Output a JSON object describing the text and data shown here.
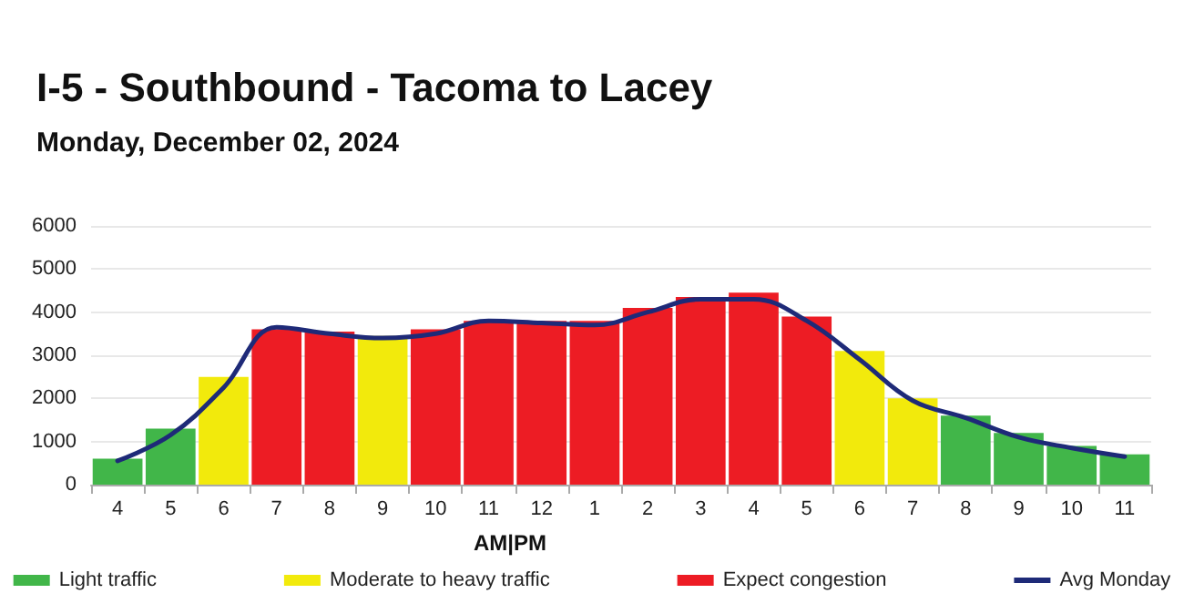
{
  "chart_data": {
    "type": "bar",
    "title": "I-5 - Southbound - Tacoma to Lacey",
    "subtitle": "Monday, December 02, 2024",
    "categories": [
      "4",
      "5",
      "6",
      "7",
      "8",
      "9",
      "10",
      "11",
      "12",
      "1",
      "2",
      "3",
      "4",
      "5",
      "6",
      "7",
      "8",
      "9",
      "10",
      "11"
    ],
    "series": [
      {
        "name": "Light traffic",
        "color": "#41b649",
        "values": [
          600,
          1300,
          null,
          null,
          null,
          null,
          null,
          null,
          null,
          null,
          null,
          null,
          null,
          null,
          null,
          null,
          1600,
          1200,
          900,
          700
        ]
      },
      {
        "name": "Moderate to heavy traffic",
        "color": "#f2ea0c",
        "values": [
          null,
          null,
          2500,
          null,
          null,
          3450,
          null,
          null,
          null,
          null,
          null,
          null,
          null,
          null,
          3100,
          2000,
          null,
          null,
          null,
          null
        ]
      },
      {
        "name": "Expect congestion",
        "color": "#ed1c24",
        "values": [
          null,
          null,
          null,
          3600,
          3550,
          null,
          3600,
          3800,
          3800,
          3800,
          4100,
          4350,
          4450,
          3900,
          null,
          null,
          null,
          null,
          null,
          null
        ]
      },
      {
        "name": "Avg Monday",
        "type": "line",
        "color": "#1e2a78",
        "values": [
          550,
          1150,
          2250,
          3650,
          3500,
          3400,
          3500,
          3800,
          3750,
          3700,
          4000,
          4300,
          4300,
          3800,
          2900,
          1950,
          1550,
          1100,
          850,
          650
        ]
      }
    ],
    "ylim": [
      0,
      6000
    ],
    "yticks": [
      0,
      1000,
      2000,
      3000,
      4000,
      5000,
      6000
    ],
    "grid": "y",
    "legend": "bottom",
    "marker": "none",
    "line_style": "solid",
    "annotations": [
      "AM|PM"
    ]
  }
}
